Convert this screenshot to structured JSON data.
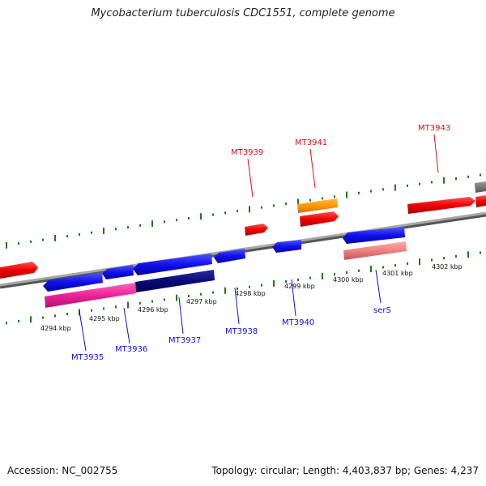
{
  "title": "Mycobacterium tuberculosis CDC1551, complete genome",
  "footer": {
    "accession": "Accession: NC_002755",
    "summary": "Topology: circular; Length: 4,403,837 bp; Genes: 4,237"
  },
  "colors": {
    "backbone": "#8a8a8a",
    "tick": "#1a7a1a",
    "label_top": "#dd1111",
    "label_bottom": "#1111cc"
  },
  "kbp_ticks": [
    "4294 kbp",
    "4295 kbp",
    "4296 kbp",
    "4297 kbp",
    "4298 kbp",
    "4299 kbp",
    "4300 kbp",
    "4301 kbp",
    "4302 kbp"
  ],
  "gene_labels": [
    {
      "text": "MT3935",
      "strand": "bottom"
    },
    {
      "text": "MT3936",
      "strand": "bottom"
    },
    {
      "text": "MT3937",
      "strand": "bottom"
    },
    {
      "text": "MT3938",
      "strand": "bottom"
    },
    {
      "text": "MT3940",
      "strand": "bottom"
    },
    {
      "text": "serS",
      "strand": "bottom"
    },
    {
      "text": "MT3939",
      "strand": "top"
    },
    {
      "text": "MT3941",
      "strand": "top"
    },
    {
      "text": "MT3943",
      "strand": "top"
    }
  ]
}
